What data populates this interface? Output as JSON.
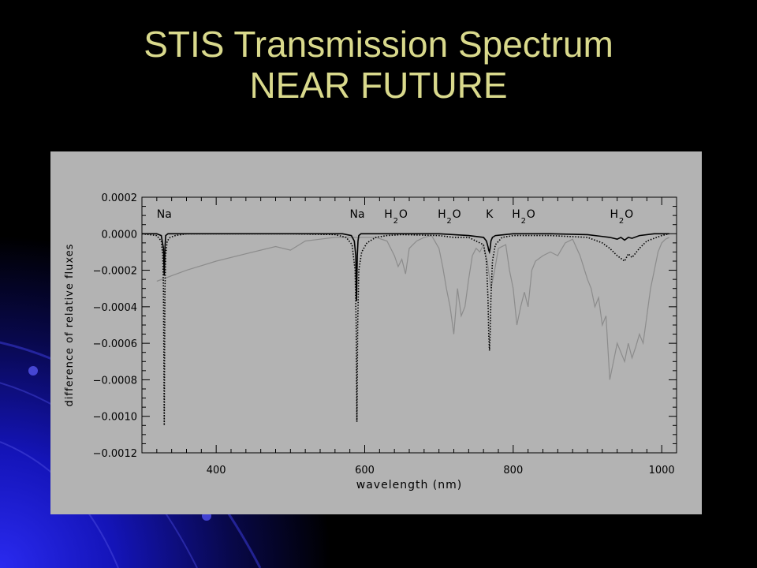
{
  "slide": {
    "title_line1": "STIS Transmission Spectrum",
    "title_line2": "NEAR FUTURE"
  },
  "colors": {
    "title": "#d9d98c",
    "background": "#000000",
    "panel": "#b3b3b3",
    "accent_blue": "#1a1ad0",
    "model_solid": "#000000",
    "model_dotted": "#000000",
    "observed": "#8c8c8c"
  },
  "chart_data": {
    "type": "line",
    "xlabel": "wavelength (nm)",
    "ylabel": "difference of relative fluxes",
    "xlim": [
      300,
      1020
    ],
    "ylim": [
      -0.0012,
      0.0002
    ],
    "xticks": [
      400,
      600,
      800,
      1000
    ],
    "xtick_labels": [
      "400",
      "600",
      "800",
      "1000"
    ],
    "yticks": [
      0.0002,
      0.0,
      -0.0002,
      -0.0004,
      -0.0006,
      -0.0008,
      -0.001,
      -0.0012
    ],
    "ytick_labels": [
      "0.0002",
      "0.0000",
      "−0.0002",
      "−0.0004",
      "−0.0006",
      "−0.0008",
      "−0.0010",
      "−0.0012"
    ],
    "grid": false,
    "annotations": [
      {
        "x": 330,
        "main": "Na",
        "sub": ""
      },
      {
        "x": 590,
        "main": "Na",
        "sub": ""
      },
      {
        "x": 646,
        "main": "HO",
        "sub": "2"
      },
      {
        "x": 718,
        "main": "HO",
        "sub": "2"
      },
      {
        "x": 768,
        "main": "K",
        "sub": ""
      },
      {
        "x": 818,
        "main": "HO",
        "sub": "2"
      },
      {
        "x": 950,
        "main": "HO",
        "sub": "2"
      }
    ],
    "series": [
      {
        "style": "solid",
        "x": [
          300,
          320,
          326,
          329,
          330,
          331,
          332,
          335,
          340,
          400,
          500,
          570,
          582,
          586,
          588,
          589,
          590,
          591,
          592,
          595,
          600,
          650,
          700,
          720,
          740,
          760,
          764,
          766,
          767,
          768,
          769,
          770,
          772,
          776,
          800,
          850,
          900,
          930,
          940,
          945,
          950,
          955,
          960,
          970,
          990,
          1010
        ],
        "y": [
          0.0,
          0.0,
          -1e-05,
          -8e-05,
          -0.00023,
          -8e-05,
          -1e-05,
          0.0,
          0.0,
          0.0,
          0.0,
          0.0,
          -1e-05,
          -4e-05,
          -0.00012,
          -0.00037,
          -0.00012,
          -4e-05,
          -1e-05,
          0.0,
          0.0,
          0.0,
          0.0,
          -5e-06,
          -1e-05,
          -2e-05,
          -4e-05,
          -7e-05,
          -9e-05,
          -0.0001,
          -8e-05,
          -4e-05,
          -2e-05,
          -1e-05,
          0.0,
          0.0,
          -5e-06,
          -2e-05,
          -3e-05,
          -2e-05,
          -3.5e-05,
          -2e-05,
          -2.5e-05,
          -1e-05,
          0.0,
          0.0
        ]
      },
      {
        "style": "dotted",
        "x": [
          300,
          320,
          326,
          328,
          329,
          330,
          331,
          332,
          334,
          338,
          345,
          360,
          400,
          500,
          560,
          575,
          583,
          587,
          588.5,
          589.5,
          590.5,
          592,
          596,
          603,
          615,
          630,
          650,
          700,
          720,
          740,
          760,
          764,
          766,
          767,
          768,
          769,
          770,
          772,
          776,
          785,
          800,
          850,
          900,
          920,
          930,
          940,
          950,
          955,
          960,
          970,
          980,
          1000,
          1010
        ],
        "y": [
          0.0,
          -1e-05,
          -4e-05,
          -0.00012,
          -0.0003,
          -0.00105,
          -0.0003,
          -0.00012,
          -4e-05,
          -2e-05,
          -1e-05,
          0.0,
          0.0,
          0.0,
          -5e-06,
          -2e-05,
          -6e-05,
          -0.0002,
          -0.0005,
          -0.00103,
          -0.0005,
          -0.0002,
          -0.0001,
          -5e-05,
          -2e-05,
          -1e-05,
          -5e-06,
          -1e-05,
          -2e-05,
          -2e-05,
          -6e-05,
          -0.00015,
          -0.00035,
          -0.00055,
          -0.00064,
          -0.00055,
          -0.00035,
          -0.00015,
          -6e-05,
          -2e-05,
          -1e-05,
          -1e-05,
          -2e-05,
          -5e-05,
          -8e-05,
          -0.00012,
          -0.00015,
          -0.00011,
          -0.00013,
          -8e-05,
          -4e-05,
          -1e-05,
          0.0
        ]
      },
      {
        "style": "gray",
        "x": [
          320,
          360,
          400,
          440,
          480,
          500,
          520,
          540,
          560,
          580,
          590,
          600,
          615,
          630,
          640,
          645,
          650,
          655,
          660,
          670,
          680,
          690,
          700,
          705,
          710,
          715,
          720,
          725,
          730,
          735,
          740,
          745,
          750,
          755,
          760,
          765,
          770,
          775,
          780,
          790,
          795,
          800,
          805,
          810,
          815,
          820,
          825,
          830,
          840,
          850,
          860,
          870,
          880,
          890,
          900,
          905,
          910,
          915,
          920,
          925,
          930,
          935,
          940,
          945,
          950,
          955,
          960,
          965,
          970,
          975,
          980,
          985,
          990,
          995,
          1000,
          1005,
          1010
        ],
        "y": [
          -0.00026,
          -0.0002,
          -0.00015,
          -0.00011,
          -7e-05,
          -9e-05,
          -4e-05,
          -3e-05,
          -2e-05,
          -2e-05,
          -2e-05,
          -2e-05,
          -2e-05,
          -4e-05,
          -0.00012,
          -0.00018,
          -0.00014,
          -0.00022,
          -8e-05,
          -4e-05,
          -2e-05,
          -1e-05,
          -8e-05,
          -0.00018,
          -0.0003,
          -0.0004,
          -0.00055,
          -0.0003,
          -0.00045,
          -0.0004,
          -0.00025,
          -0.00012,
          -8e-05,
          -0.0001,
          -6e-05,
          -0.00015,
          -0.0003,
          -0.0002,
          -8e-05,
          -6e-05,
          -0.0002,
          -0.0003,
          -0.0005,
          -0.0004,
          -0.00032,
          -0.0004,
          -0.0002,
          -0.00015,
          -0.00012,
          -0.0001,
          -0.00012,
          -5e-05,
          -3e-05,
          -0.00012,
          -0.00025,
          -0.0003,
          -0.0004,
          -0.00035,
          -0.0005,
          -0.00045,
          -0.0008,
          -0.0007,
          -0.0006,
          -0.00065,
          -0.0007,
          -0.0006,
          -0.00068,
          -0.00062,
          -0.00055,
          -0.0006,
          -0.00045,
          -0.0003,
          -0.0002,
          -0.0001,
          -5e-05,
          -3e-05,
          -2e-05
        ]
      }
    ]
  }
}
